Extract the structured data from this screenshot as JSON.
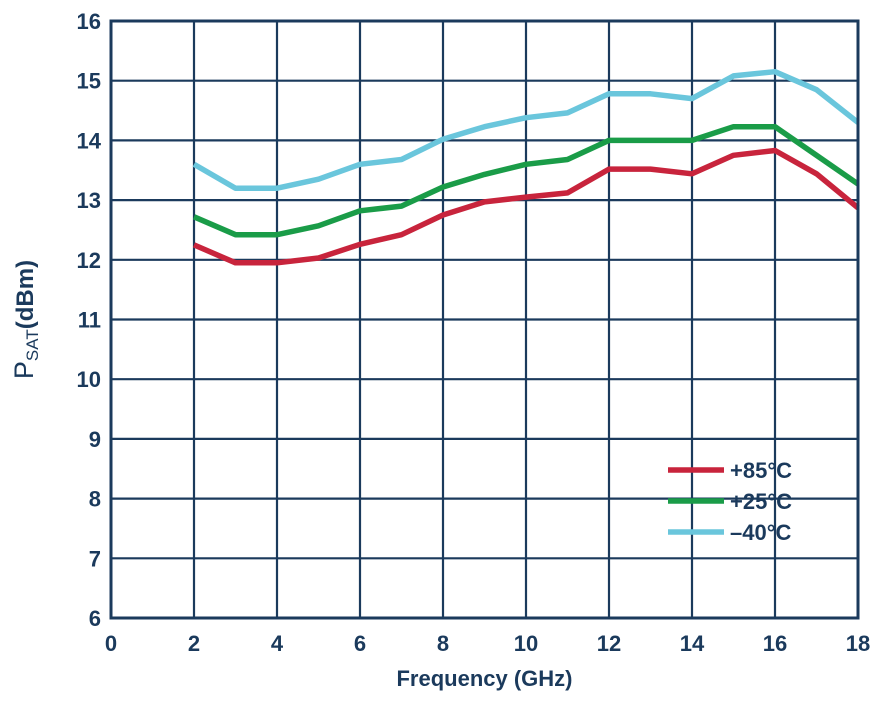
{
  "chart_data": {
    "type": "line",
    "title": "",
    "xlabel": "Frequency (GHz)",
    "ylabel": {
      "main": "P",
      "subscript": "SAT",
      "unit": "(dBm)"
    },
    "xlim": [
      0,
      18
    ],
    "ylim": [
      6,
      16
    ],
    "xticks": [
      0,
      2,
      4,
      6,
      8,
      10,
      12,
      14,
      16,
      18
    ],
    "yticks": [
      6,
      7,
      8,
      9,
      10,
      11,
      12,
      13,
      14,
      15,
      16
    ],
    "grid": true,
    "legend_position": "bottom-right",
    "series": [
      {
        "name": "+85°C",
        "color": "#c8243c",
        "x": [
          2,
          3,
          4,
          5,
          6,
          7,
          8,
          9,
          10,
          11,
          12,
          13,
          14,
          15,
          16,
          17,
          18
        ],
        "y": [
          12.25,
          11.95,
          11.95,
          12.03,
          12.26,
          12.42,
          12.75,
          12.97,
          13.05,
          13.12,
          13.52,
          13.52,
          13.44,
          13.75,
          13.83,
          13.44,
          12.87
        ]
      },
      {
        "name": "+25°C",
        "color": "#1a9c48",
        "x": [
          2,
          3,
          4,
          5,
          6,
          7,
          8,
          9,
          10,
          11,
          12,
          13,
          14,
          15,
          16,
          17,
          18
        ],
        "y": [
          12.72,
          12.42,
          12.42,
          12.57,
          12.82,
          12.9,
          13.22,
          13.43,
          13.6,
          13.68,
          14.0,
          14.0,
          14.0,
          14.23,
          14.23,
          13.75,
          13.27
        ]
      },
      {
        "name": "–40°C",
        "color": "#6ac6dc",
        "x": [
          2,
          3,
          4,
          5,
          6,
          7,
          8,
          9,
          10,
          11,
          12,
          13,
          14,
          15,
          16,
          17,
          18
        ],
        "y": [
          13.6,
          13.2,
          13.2,
          13.35,
          13.6,
          13.68,
          14.02,
          14.23,
          14.38,
          14.46,
          14.78,
          14.78,
          14.7,
          15.08,
          15.15,
          14.85,
          14.3
        ]
      }
    ]
  }
}
